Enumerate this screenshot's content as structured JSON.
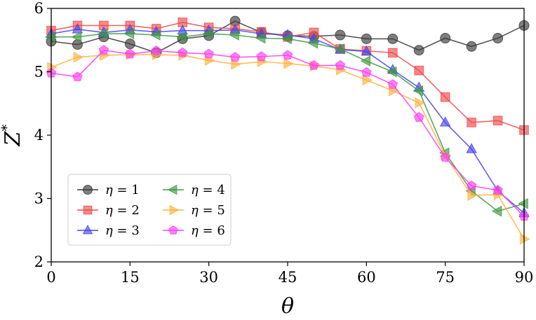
{
  "chart_data": {
    "type": "line",
    "xlabel": "θ",
    "ylabel_base": "Z",
    "ylabel_sup": "*",
    "xlim": [
      0,
      90
    ],
    "ylim": [
      2,
      6
    ],
    "xticks": [
      0,
      15,
      30,
      45,
      60,
      75,
      90
    ],
    "yticks": [
      2,
      3,
      4,
      5,
      6
    ],
    "x": [
      0,
      5,
      10,
      15,
      20,
      25,
      30,
      35,
      40,
      45,
      50,
      55,
      60,
      65,
      70,
      75,
      80,
      85,
      90
    ],
    "grid": false,
    "legend_position": "lower-left",
    "legend_symbol": "η",
    "series": [
      {
        "name": "η = 1",
        "eta": "1",
        "color": "#3a3a3a",
        "marker": "circle",
        "values": [
          5.48,
          5.43,
          5.55,
          5.44,
          5.3,
          5.52,
          5.57,
          5.8,
          5.62,
          5.57,
          5.56,
          5.58,
          5.52,
          5.52,
          5.34,
          5.53,
          5.4,
          5.53,
          5.73
        ]
      },
      {
        "name": "η = 2",
        "eta": "2",
        "color": "#f04a4a",
        "marker": "square",
        "values": [
          5.65,
          5.73,
          5.73,
          5.73,
          5.68,
          5.78,
          5.7,
          5.68,
          5.63,
          5.55,
          5.62,
          5.36,
          5.33,
          5.3,
          5.02,
          4.6,
          4.2,
          4.23,
          4.08
        ]
      },
      {
        "name": "η = 3",
        "eta": "3",
        "color": "#4545ee",
        "marker": "triangle-up",
        "values": [
          5.6,
          5.67,
          5.62,
          5.66,
          5.63,
          5.65,
          5.65,
          5.66,
          5.6,
          5.58,
          5.52,
          5.35,
          5.32,
          5.03,
          4.75,
          4.2,
          3.78,
          3.12,
          2.77
        ]
      },
      {
        "name": "η = 4",
        "eta": "4",
        "color": "#3e9a3e",
        "marker": "triangle-left",
        "values": [
          5.55,
          5.55,
          5.6,
          5.6,
          5.58,
          5.55,
          5.6,
          5.58,
          5.53,
          5.52,
          5.45,
          5.36,
          5.17,
          5.0,
          4.7,
          3.72,
          3.12,
          2.8,
          2.92
        ]
      },
      {
        "name": "η = 5",
        "eta": "5",
        "color": "#ffb13d",
        "marker": "triangle-right",
        "values": [
          5.07,
          5.23,
          5.26,
          5.27,
          5.27,
          5.26,
          5.18,
          5.12,
          5.16,
          5.13,
          5.09,
          5.03,
          4.87,
          4.7,
          4.51,
          3.68,
          3.05,
          3.06,
          2.36
        ]
      },
      {
        "name": "η = 6",
        "eta": "6",
        "color": "#ff3cf2",
        "marker": "pentagon",
        "values": [
          4.98,
          4.92,
          5.34,
          5.28,
          5.33,
          5.3,
          5.28,
          5.23,
          5.24,
          5.26,
          5.1,
          5.1,
          4.99,
          4.8,
          4.28,
          3.65,
          3.2,
          3.13,
          2.72
        ]
      }
    ]
  }
}
